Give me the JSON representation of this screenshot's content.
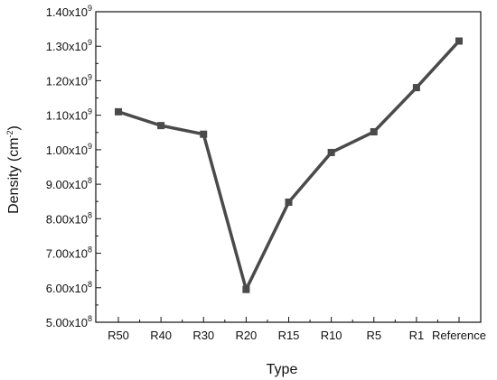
{
  "chart_data": {
    "type": "line",
    "xlabel": "Type",
    "ylabel": "Density (cm",
    "ylabel_sup": "-2",
    "ylabel_close": ")",
    "categories": [
      "R50",
      "R40",
      "R30",
      "R20",
      "R15",
      "R10",
      "R5",
      "R1",
      "Reference"
    ],
    "values": [
      1110000000.0,
      1070000000.0,
      1045000000.0,
      595000000.0,
      848000000.0,
      992000000.0,
      1052000000.0,
      1180000000.0,
      1315000000.0
    ],
    "ylim": [
      500000000.0,
      1400000000.0
    ],
    "yticks": [
      {
        "value": 500000000.0,
        "mant": "5.00x10",
        "exp": "8"
      },
      {
        "value": 600000000.0,
        "mant": "6.00x10",
        "exp": "8"
      },
      {
        "value": 700000000.0,
        "mant": "7.00x10",
        "exp": "8"
      },
      {
        "value": 800000000.0,
        "mant": "8.00x10",
        "exp": "8"
      },
      {
        "value": 900000000.0,
        "mant": "9.00x10",
        "exp": "8"
      },
      {
        "value": 1000000000.0,
        "mant": "1.00x10",
        "exp": "9"
      },
      {
        "value": 1100000000.0,
        "mant": "1.10x10",
        "exp": "9"
      },
      {
        "value": 1200000000.0,
        "mant": "1.20x10",
        "exp": "9"
      },
      {
        "value": 1300000000.0,
        "mant": "1.30x10",
        "exp": "9"
      },
      {
        "value": 1400000000.0,
        "mant": "1.40x10",
        "exp": "9"
      }
    ],
    "grid": false,
    "line_color": "#4a4a4a",
    "marker": "square"
  }
}
